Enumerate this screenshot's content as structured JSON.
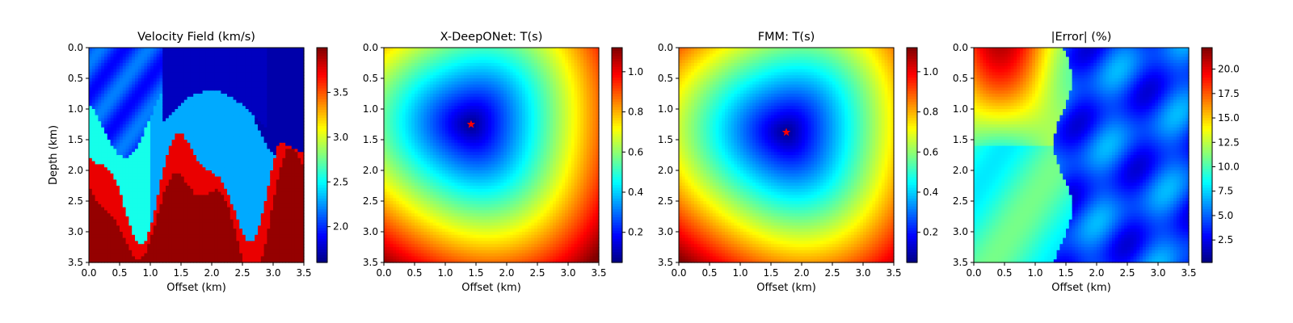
{
  "figure": {
    "panels": 4
  },
  "chart_data": [
    {
      "type": "heatmap",
      "title": "Velocity Field (km/s)",
      "xlabel": "Offset (km)",
      "ylabel": "Depth (km)",
      "xlim": [
        0,
        3.5
      ],
      "ylim": [
        3.5,
        0
      ],
      "xticks": [
        "0.0",
        "0.5",
        "1.0",
        "1.5",
        "2.0",
        "2.5",
        "3.0",
        "3.5"
      ],
      "yticks": [
        "0.0",
        "0.5",
        "1.0",
        "1.5",
        "2.0",
        "2.5",
        "3.0",
        "3.5"
      ],
      "colorbar": {
        "range": [
          1.6,
          4.0
        ],
        "ticks": [
          "2.0",
          "2.5",
          "3.0",
          "3.5"
        ],
        "tick_values": [
          2.0,
          2.5,
          3.0,
          3.5
        ]
      },
      "colormap": "jet",
      "field": "velocity"
    },
    {
      "type": "heatmap",
      "title": "X-DeepONet: T(s)",
      "xlabel": "Offset (km)",
      "ylabel": "",
      "xlim": [
        0,
        3.5
      ],
      "ylim": [
        3.5,
        0
      ],
      "xticks": [
        "0.0",
        "0.5",
        "1.0",
        "1.5",
        "2.0",
        "2.5",
        "3.0",
        "3.5"
      ],
      "yticks": [
        "0.0",
        "0.5",
        "1.0",
        "1.5",
        "2.0",
        "2.5",
        "3.0",
        "3.5"
      ],
      "colorbar": {
        "range": [
          0.05,
          1.12
        ],
        "ticks": [
          "0.2",
          "0.4",
          "0.6",
          "0.8",
          "1.0"
        ],
        "tick_values": [
          0.2,
          0.4,
          0.6,
          0.8,
          1.0
        ]
      },
      "colormap": "jet",
      "field": "traveltime",
      "source": {
        "x": 1.42,
        "y": 1.25
      }
    },
    {
      "type": "heatmap",
      "title": "FMM: T(s)",
      "xlabel": "Offset (km)",
      "ylabel": "",
      "xlim": [
        0,
        3.5
      ],
      "ylim": [
        3.5,
        0
      ],
      "xticks": [
        "0.0",
        "0.5",
        "1.0",
        "1.5",
        "2.0",
        "2.5",
        "3.0",
        "3.5"
      ],
      "yticks": [
        "0.0",
        "0.5",
        "1.0",
        "1.5",
        "2.0",
        "2.5",
        "3.0",
        "3.5"
      ],
      "colorbar": {
        "range": [
          0.05,
          1.12
        ],
        "ticks": [
          "0.2",
          "0.4",
          "0.6",
          "0.8",
          "1.0"
        ],
        "tick_values": [
          0.2,
          0.4,
          0.6,
          0.8,
          1.0
        ]
      },
      "colormap": "jet",
      "field": "traveltime",
      "source": {
        "x": 1.75,
        "y": 1.38
      }
    },
    {
      "type": "heatmap",
      "title": "|Error| (%)",
      "xlabel": "Offset (km)",
      "ylabel": "",
      "xlim": [
        0,
        3.5
      ],
      "ylim": [
        3.5,
        0
      ],
      "xticks": [
        "0.0",
        "0.5",
        "1.0",
        "1.5",
        "2.0",
        "2.5",
        "3.0",
        "3.5"
      ],
      "yticks": [
        "0.0",
        "0.5",
        "1.0",
        "1.5",
        "2.0",
        "2.5",
        "3.0",
        "3.5"
      ],
      "colorbar": {
        "range": [
          0.2,
          22.2
        ],
        "ticks": [
          "2.5",
          "5.0",
          "7.5",
          "10.0",
          "12.5",
          "15.0",
          "17.5",
          "20.0"
        ],
        "tick_values": [
          2.5,
          5.0,
          7.5,
          10.0,
          12.5,
          15.0,
          17.5,
          20.0
        ]
      },
      "colormap": "jet",
      "field": "error"
    }
  ]
}
